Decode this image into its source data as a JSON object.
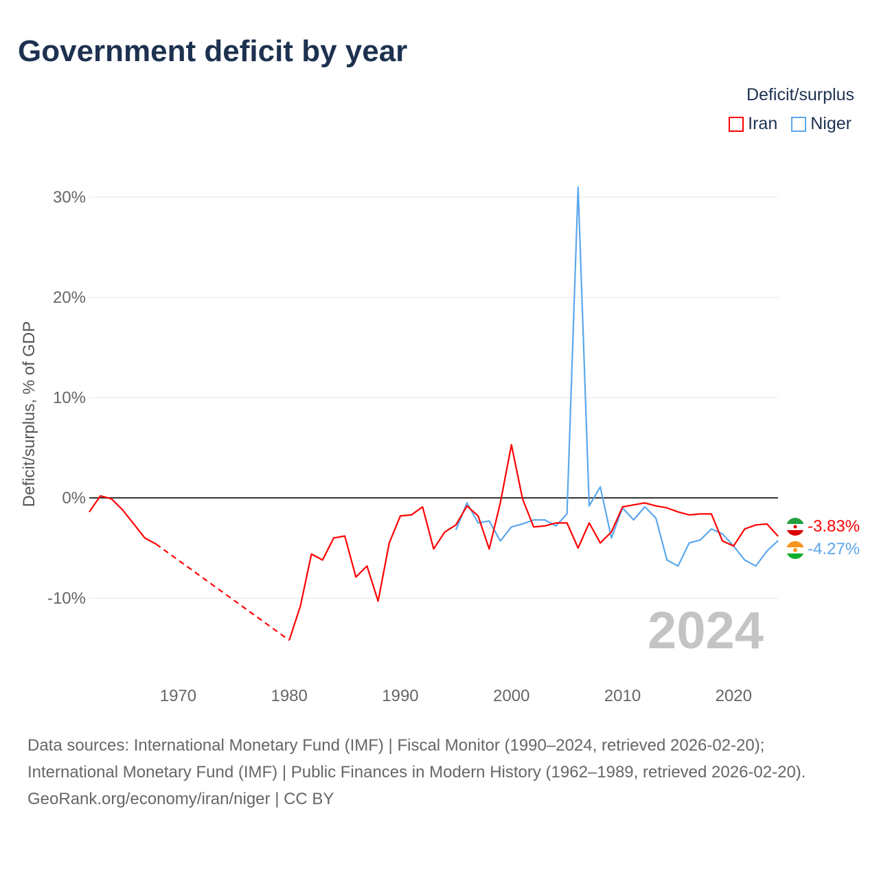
{
  "title": "Government deficit by year",
  "legend": {
    "title": "Deficit/surplus",
    "items": [
      {
        "name": "Iran",
        "color": "#ff0000"
      },
      {
        "name": "Niger",
        "color": "#5aa7ec"
      }
    ]
  },
  "year_label": "2024",
  "end_labels": {
    "iran": "-3.83%",
    "niger": "-4.27%"
  },
  "footer": {
    "sources": "Data sources: International Monetary Fund (IMF) | Fiscal Monitor (1990–2024, retrieved 2026-02-20); International Monetary Fund (IMF) | Public Finances in Modern History (1962–1989, retrieved 2026-02-20).",
    "credit": "GeoRank.org/economy/iran/niger | CC BY"
  },
  "chart_data": {
    "type": "line",
    "title": "Government deficit by year",
    "xlabel": "",
    "ylabel": "Deficit/surplus, % of GDP",
    "xlim": [
      1962,
      2024
    ],
    "ylim": [
      -17,
      31
    ],
    "xticks": [
      1970,
      1980,
      1990,
      2000,
      2010,
      2020
    ],
    "yticks": [
      {
        "v": 30,
        "label": "30%"
      },
      {
        "v": 20,
        "label": "20%"
      },
      {
        "v": 10,
        "label": "10%"
      },
      {
        "v": 0,
        "label": "0%"
      },
      {
        "v": -10,
        "label": "-10%"
      }
    ],
    "grid": true,
    "legend_position": "top-right",
    "series": [
      {
        "name": "Iran",
        "color": "#ff0000",
        "gap": [
          1968,
          1980
        ],
        "x": [
          1962,
          1963,
          1964,
          1965,
          1966,
          1967,
          1968,
          1980,
          1981,
          1982,
          1983,
          1984,
          1985,
          1986,
          1987,
          1988,
          1989,
          1990,
          1991,
          1992,
          1993,
          1994,
          1995,
          1996,
          1997,
          1998,
          1999,
          2000,
          2001,
          2002,
          2003,
          2004,
          2005,
          2006,
          2007,
          2008,
          2009,
          2010,
          2011,
          2012,
          2013,
          2014,
          2015,
          2016,
          2017,
          2018,
          2019,
          2020,
          2021,
          2022,
          2023,
          2024
        ],
        "y": [
          -1.4,
          0.2,
          -0.1,
          -1.2,
          -2.6,
          -4.0,
          -4.6,
          -14.2,
          -10.8,
          -5.6,
          -6.2,
          -4.0,
          -3.8,
          -7.9,
          -6.8,
          -10.3,
          -4.5,
          -1.8,
          -1.7,
          -0.9,
          -5.1,
          -3.4,
          -2.7,
          -0.8,
          -1.8,
          -5.1,
          -0.5,
          5.3,
          -0.1,
          -2.9,
          -2.8,
          -2.5,
          -2.5,
          -5.0,
          -2.5,
          -4.5,
          -3.4,
          -0.9,
          -0.7,
          -0.5,
          -0.8,
          -1.0,
          -1.4,
          -1.7,
          -1.6,
          -1.6,
          -4.3,
          -4.8,
          -3.1,
          -2.7,
          -2.6,
          -3.83
        ]
      },
      {
        "name": "Niger",
        "color": "#5aa7ec",
        "x": [
          1995,
          1996,
          1997,
          1998,
          1999,
          2000,
          2001,
          2002,
          2003,
          2004,
          2005,
          2006,
          2007,
          2008,
          2009,
          2010,
          2011,
          2012,
          2013,
          2014,
          2015,
          2016,
          2017,
          2018,
          2019,
          2020,
          2021,
          2022,
          2023,
          2024
        ],
        "y": [
          -3.2,
          -0.5,
          -2.5,
          -2.3,
          -4.3,
          -2.9,
          -2.6,
          -2.2,
          -2.2,
          -2.8,
          -1.6,
          31.0,
          -0.8,
          1.1,
          -4.0,
          -1.0,
          -2.2,
          -0.9,
          -2.0,
          -6.2,
          -6.8,
          -4.5,
          -4.2,
          -3.1,
          -3.6,
          -4.8,
          -6.2,
          -6.8,
          -5.3,
          -4.27
        ]
      }
    ]
  }
}
